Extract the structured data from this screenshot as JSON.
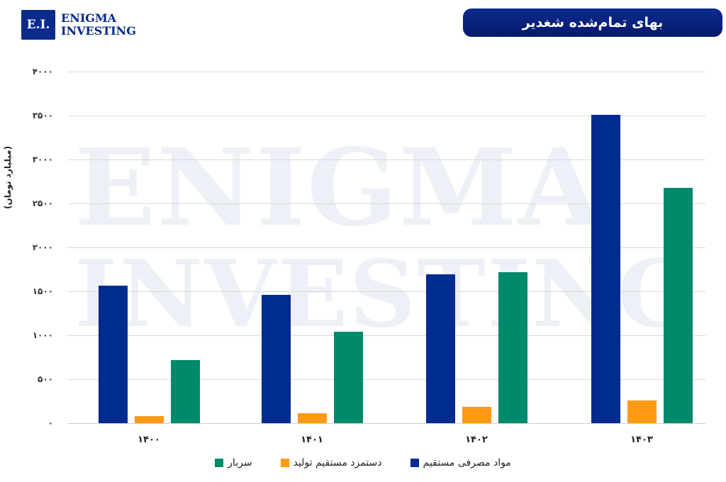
{
  "logo": {
    "mark": "E.I.",
    "line1": "ENIGMA",
    "line2": "INVESTING"
  },
  "watermark": {
    "line1": "ENIGMA",
    "line2": "INVESTING"
  },
  "header": {
    "title": "بهای تمام‌شده شغدیر"
  },
  "colors": {
    "direct_materials": "#002b8f",
    "direct_labor": "#ff9a14",
    "overhead": "#00896a"
  },
  "chart_data": {
    "type": "bar",
    "title": "بهای تمام‌شده شغدیر",
    "xlabel": "",
    "ylabel": "(میلیارد تومان)",
    "ylim": [
      0,
      4000
    ],
    "yticks": [
      "۰",
      "۵۰۰",
      "۱۰۰۰",
      "۱۵۰۰",
      "۲۰۰۰",
      "۲۵۰۰",
      "۳۰۰۰",
      "۳۵۰۰",
      "۴۰۰۰"
    ],
    "ytick_values": [
      0,
      500,
      1000,
      1500,
      2000,
      2500,
      3000,
      3500,
      4000
    ],
    "categories": [
      "۱۴۰۰",
      "۱۴۰۱",
      "۱۴۰۲",
      "۱۴۰۳"
    ],
    "series": [
      {
        "name": "مواد مصرفی مستقیم",
        "color": "#002b8f",
        "values": [
          1565,
          1460,
          1695,
          3510
        ]
      },
      {
        "name": "دستمزد مستقیم تولید",
        "color": "#ff9a14",
        "values": [
          80,
          113,
          185,
          260
        ]
      },
      {
        "name": "سربار",
        "color": "#00896a",
        "values": [
          715,
          1040,
          1720,
          2680
        ]
      }
    ],
    "grid": true,
    "legend_position": "bottom"
  }
}
